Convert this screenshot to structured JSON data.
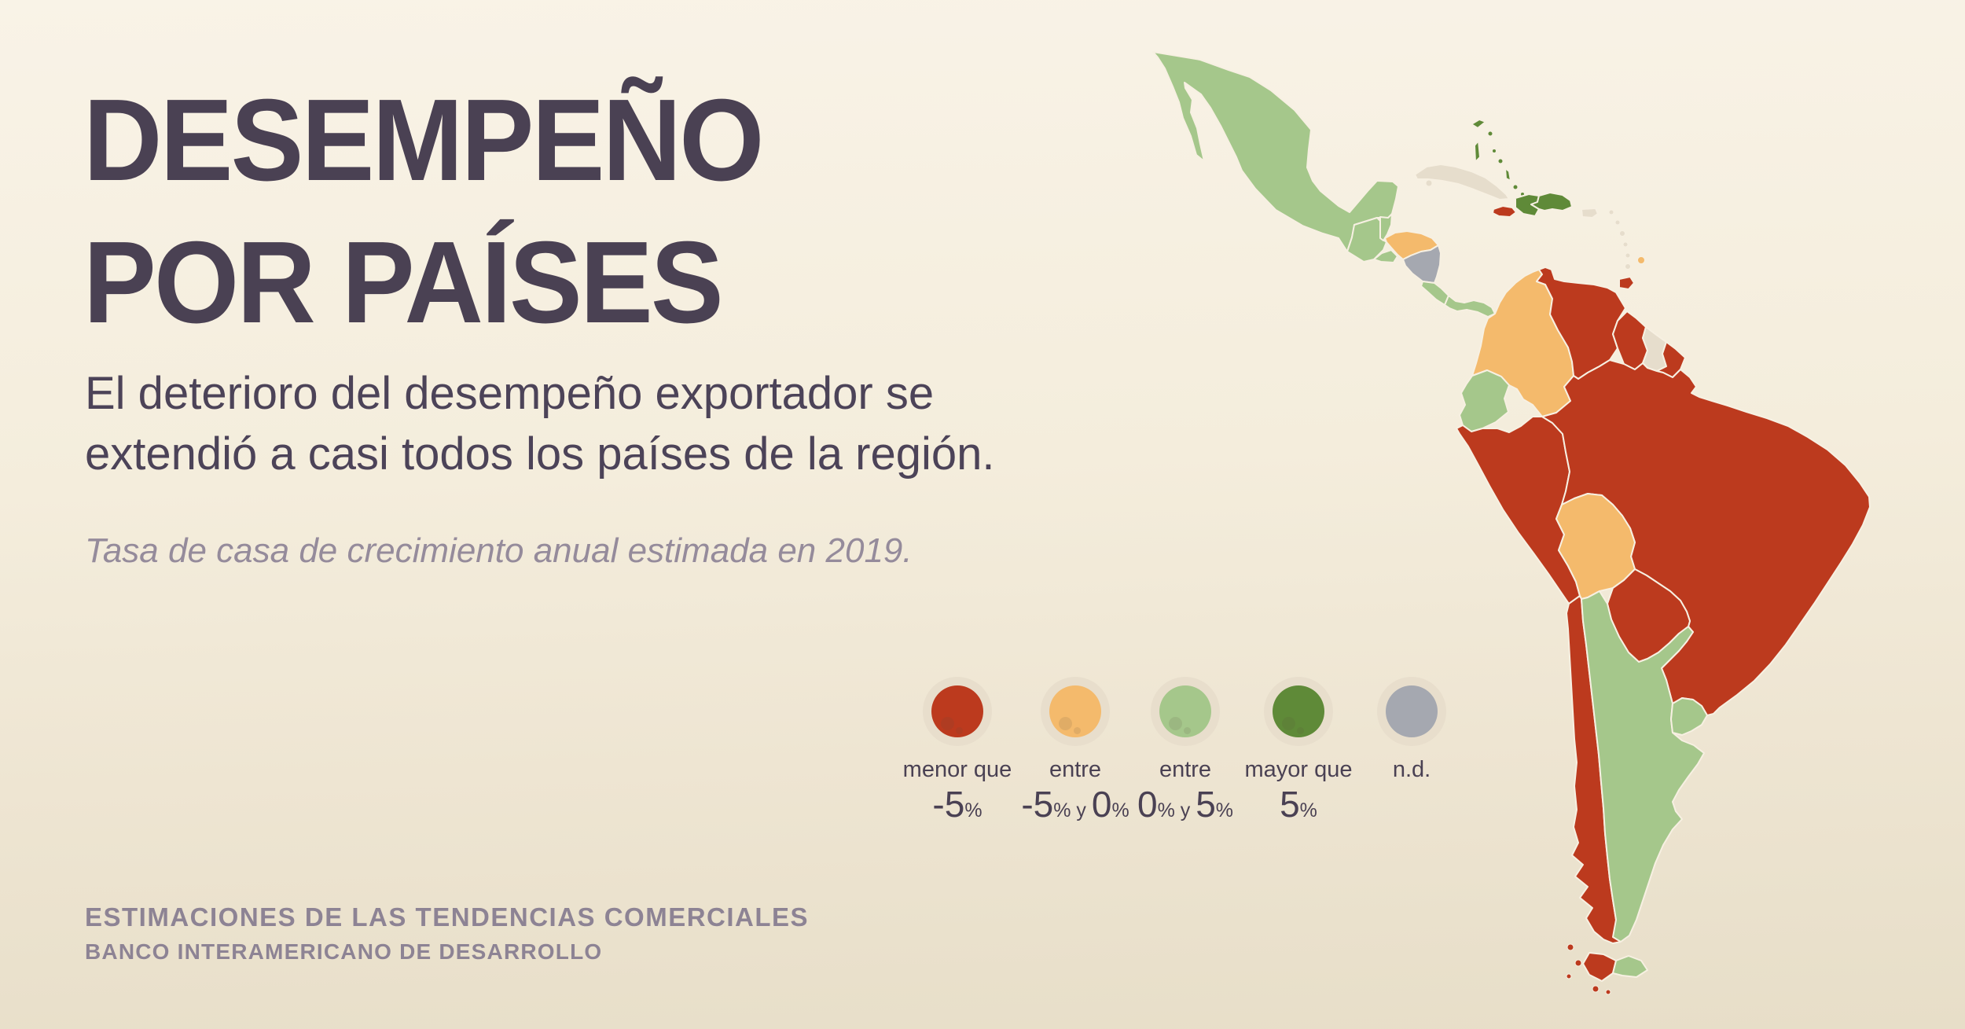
{
  "title": {
    "line1": "DESEMPEÑO",
    "line2": "POR PAÍSES"
  },
  "subtitle": "El deterioro del desempeño exportador se extendió a casi todos los países de la región.",
  "note": "Tasa de casa de crecimiento anual estimada en 2019.",
  "footer": {
    "line1": "ESTIMACIONES DE LAS TENDENCIAS COMERCIALES",
    "line2": "BANCO INTERAMERICANO DE DESARROLLO"
  },
  "colors": {
    "menor": "#bc3a1e",
    "entre_neg": "#f4ba6c",
    "entre_pos": "#a5c78b",
    "mayor": "#5f8a38",
    "nd": "#a5a8b0",
    "na": "#e6ddcc",
    "ring": "#e8decc",
    "border": "#f7f0e2",
    "title_text": "#4a4153",
    "muted_text": "#8d8394"
  },
  "legend": {
    "items": [
      {
        "id": "menor",
        "label": "menor que",
        "parts": [
          {
            "t": "-5",
            "big": true
          },
          {
            "t": "%",
            "big": false
          }
        ]
      },
      {
        "id": "entre_neg",
        "label": "entre",
        "parts": [
          {
            "t": "-5",
            "big": true
          },
          {
            "t": "%",
            "big": false
          },
          {
            "t": " y ",
            "big": false
          },
          {
            "t": "0",
            "big": true
          },
          {
            "t": "%",
            "big": false
          }
        ]
      },
      {
        "id": "entre_pos",
        "label": "entre",
        "parts": [
          {
            "t": "0",
            "big": true
          },
          {
            "t": "%",
            "big": false
          },
          {
            "t": " y ",
            "big": false
          },
          {
            "t": "5",
            "big": true
          },
          {
            "t": "%",
            "big": false
          }
        ]
      },
      {
        "id": "mayor",
        "label": "mayor que",
        "parts": [
          {
            "t": "5",
            "big": true
          },
          {
            "t": "%",
            "big": false
          }
        ]
      },
      {
        "id": "nd",
        "label": "n.d.",
        "parts": []
      }
    ]
  },
  "map": {
    "countries": [
      {
        "name": "mexico",
        "category": "entre_pos"
      },
      {
        "name": "guatemala",
        "category": "entre_pos"
      },
      {
        "name": "belize",
        "category": "entre_pos"
      },
      {
        "name": "honduras",
        "category": "entre_neg"
      },
      {
        "name": "el_salvador",
        "category": "entre_pos"
      },
      {
        "name": "nicaragua",
        "category": "nd"
      },
      {
        "name": "costa_rica",
        "category": "entre_pos"
      },
      {
        "name": "panama",
        "category": "entre_pos"
      },
      {
        "name": "cuba",
        "category": "na"
      },
      {
        "name": "bahamas",
        "category": "mayor"
      },
      {
        "name": "jamaica",
        "category": "menor"
      },
      {
        "name": "haiti",
        "category": "mayor"
      },
      {
        "name": "dominican_republic",
        "category": "mayor"
      },
      {
        "name": "puerto_rico",
        "category": "na"
      },
      {
        "name": "lesser_antilles",
        "category": "na"
      },
      {
        "name": "barbados",
        "category": "entre_neg"
      },
      {
        "name": "trinidad_tobago",
        "category": "menor"
      },
      {
        "name": "colombia",
        "category": "entre_neg"
      },
      {
        "name": "venezuela",
        "category": "menor"
      },
      {
        "name": "guyana",
        "category": "menor"
      },
      {
        "name": "suriname",
        "category": "na"
      },
      {
        "name": "french_guiana",
        "category": "menor"
      },
      {
        "name": "ecuador",
        "category": "entre_pos"
      },
      {
        "name": "peru",
        "category": "menor"
      },
      {
        "name": "brazil",
        "category": "menor"
      },
      {
        "name": "bolivia",
        "category": "entre_neg"
      },
      {
        "name": "paraguay",
        "category": "menor"
      },
      {
        "name": "chile",
        "category": "menor"
      },
      {
        "name": "argentina",
        "category": "entre_pos"
      },
      {
        "name": "uruguay",
        "category": "entre_pos"
      }
    ]
  }
}
